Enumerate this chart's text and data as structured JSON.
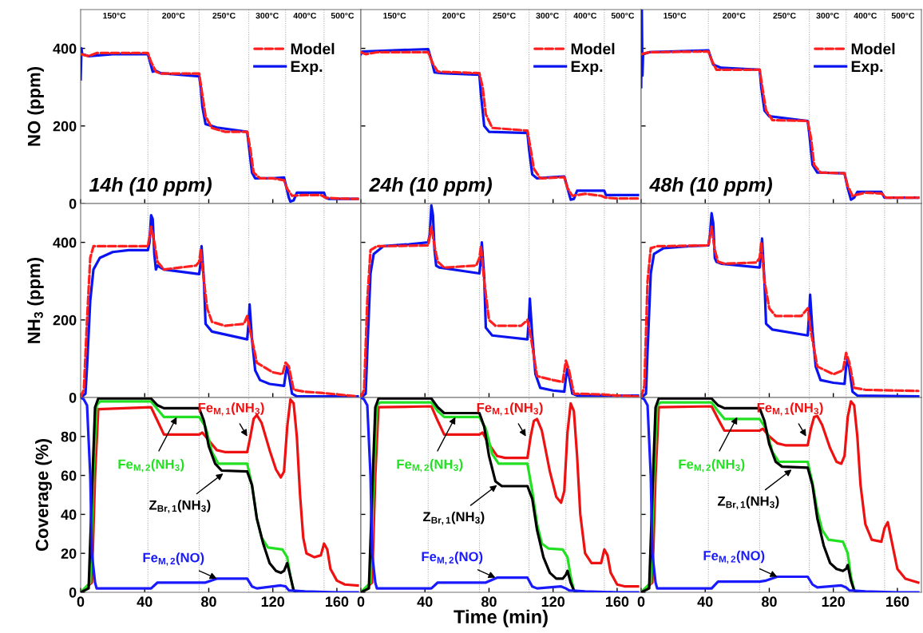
{
  "chart_data": [
    {
      "type": "line",
      "ylabel": "NO (ppm)",
      "xlim": [
        0,
        175
      ],
      "xticks": [
        0,
        40,
        80,
        120,
        160
      ],
      "ylim": [
        0,
        500
      ],
      "yticks": [
        0,
        200,
        400
      ],
      "tick_labels": "y",
      "legend": "top right",
      "ref_lines": [
        {
          "axis": "x",
          "value": 42,
          "color": "#b0b0b0",
          "line_style": "dotted"
        },
        {
          "axis": "x",
          "value": 74,
          "color": "#b0b0b0",
          "line_style": "dotted"
        },
        {
          "axis": "x",
          "value": 105,
          "color": "#b0b0b0",
          "line_style": "dotted"
        },
        {
          "axis": "x",
          "value": 128,
          "color": "#b0b0b0",
          "line_style": "dotted"
        },
        {
          "axis": "x",
          "value": 152,
          "color": "#b0b0b0",
          "line_style": "dotted"
        }
      ],
      "annotations": [
        "150°C",
        "200°C",
        "250°C",
        "300°C",
        "400°C",
        "500°C",
        "14h (10 ppm)"
      ],
      "series": [
        {
          "name": "Model",
          "color": "#ff1f1f",
          "line_style": "dashed",
          "x": [
            0,
            5,
            10,
            42,
            44,
            47,
            50,
            74,
            76,
            78,
            82,
            90,
            104,
            106,
            108,
            112,
            120,
            127,
            129,
            132,
            140,
            150,
            153,
            160,
            173
          ],
          "values": [
            385,
            380,
            388,
            388,
            365,
            340,
            335,
            335,
            280,
            225,
            195,
            185,
            185,
            140,
            80,
            65,
            65,
            60,
            38,
            20,
            22,
            22,
            15,
            13,
            12
          ]
        },
        {
          "name": "Exp.",
          "color": "#0a14f0",
          "line_style": "solid",
          "x": [
            0,
            0.5,
            1,
            5,
            20,
            42,
            43,
            45,
            47,
            50,
            74,
            75,
            76,
            78,
            85,
            104,
            105,
            107,
            109,
            120,
            127,
            128,
            130,
            131,
            133,
            135,
            152,
            153,
            155,
            173
          ],
          "values": [
            320,
            400,
            385,
            380,
            385,
            385,
            370,
            340,
            342,
            336,
            328,
            300,
            250,
            205,
            196,
            185,
            150,
            80,
            65,
            65,
            67,
            50,
            15,
            5,
            8,
            28,
            28,
            15,
            12,
            12
          ]
        }
      ]
    },
    {
      "type": "line",
      "xlim": [
        0,
        175
      ],
      "xticks": [
        0,
        40,
        80,
        120,
        160
      ],
      "ylim": [
        0,
        500
      ],
      "yticks": [
        0,
        200,
        400
      ],
      "tick_labels": false,
      "legend": "top right",
      "ref_lines": [
        {
          "axis": "x",
          "value": 42,
          "color": "#b0b0b0",
          "line_style": "dotted"
        },
        {
          "axis": "x",
          "value": 74,
          "color": "#b0b0b0",
          "line_style": "dotted"
        },
        {
          "axis": "x",
          "value": 105,
          "color": "#b0b0b0",
          "line_style": "dotted"
        },
        {
          "axis": "x",
          "value": 128,
          "color": "#b0b0b0",
          "line_style": "dotted"
        },
        {
          "axis": "x",
          "value": 152,
          "color": "#b0b0b0",
          "line_style": "dotted"
        }
      ],
      "annotations": [
        "150°C",
        "200°C",
        "250°C",
        "300°C",
        "400°C",
        "500°C",
        "24h (10 ppm)"
      ],
      "series": [
        {
          "name": "Model",
          "color": "#ff1f1f",
          "line_style": "dashed",
          "x": [
            0,
            3,
            10,
            42,
            45,
            48,
            74,
            76,
            78,
            82,
            104,
            106,
            108,
            112,
            127,
            129,
            132,
            140,
            150,
            153,
            160,
            173
          ],
          "values": [
            390,
            385,
            390,
            390,
            360,
            340,
            336,
            300,
            230,
            195,
            188,
            140,
            90,
            65,
            68,
            40,
            20,
            25,
            20,
            15,
            13,
            13
          ]
        },
        {
          "name": "Exp.",
          "color": "#0a14f0",
          "line_style": "solid",
          "x": [
            0,
            1,
            20,
            42,
            44,
            46,
            50,
            74,
            75,
            77,
            80,
            104,
            105,
            107,
            110,
            120,
            127,
            129,
            131,
            133,
            135,
            152,
            153,
            173
          ],
          "values": [
            385,
            392,
            395,
            398,
            370,
            338,
            336,
            332,
            280,
            200,
            185,
            182,
            140,
            75,
            65,
            68,
            70,
            40,
            10,
            12,
            33,
            33,
            22,
            22
          ]
        }
      ]
    },
    {
      "type": "line",
      "xlim": [
        0,
        175
      ],
      "xticks": [
        0,
        40,
        80,
        120,
        160
      ],
      "ylim": [
        0,
        500
      ],
      "yticks": [
        0,
        200,
        400
      ],
      "tick_labels": false,
      "legend": "top right",
      "ref_lines": [
        {
          "axis": "x",
          "value": 42,
          "color": "#b0b0b0",
          "line_style": "dotted"
        },
        {
          "axis": "x",
          "value": 74,
          "color": "#b0b0b0",
          "line_style": "dotted"
        },
        {
          "axis": "x",
          "value": 105,
          "color": "#b0b0b0",
          "line_style": "dotted"
        },
        {
          "axis": "x",
          "value": 128,
          "color": "#b0b0b0",
          "line_style": "dotted"
        },
        {
          "axis": "x",
          "value": 152,
          "color": "#b0b0b0",
          "line_style": "dotted"
        }
      ],
      "annotations": [
        "150°C",
        "200°C",
        "250°C",
        "300°C",
        "400°C",
        "500°C",
        "48h (10 ppm)"
      ],
      "series": [
        {
          "name": "Model",
          "color": "#ff1f1f",
          "line_style": "dashed",
          "x": [
            0,
            5,
            42,
            44,
            47,
            74,
            76,
            78,
            82,
            104,
            106,
            108,
            112,
            127,
            129,
            132,
            140,
            150,
            153,
            173
          ],
          "values": [
            385,
            390,
            392,
            370,
            345,
            345,
            290,
            240,
            215,
            213,
            170,
            100,
            80,
            78,
            45,
            20,
            28,
            26,
            15,
            15
          ]
        },
        {
          "name": "Exp.",
          "color": "#0a14f0",
          "line_style": "solid",
          "x": [
            0,
            0.4,
            0.8,
            1.2,
            5,
            42,
            44,
            45,
            50,
            74,
            75,
            77,
            80,
            104,
            105,
            107,
            110,
            127,
            129,
            131,
            133,
            135,
            150,
            152,
            173
          ],
          "values": [
            300,
            500,
            330,
            385,
            390,
            395,
            370,
            358,
            350,
            345,
            300,
            240,
            225,
            213,
            180,
            100,
            80,
            78,
            40,
            10,
            15,
            30,
            30,
            15,
            15
          ]
        }
      ]
    },
    {
      "type": "line",
      "ylabel": "NH$_{3}$ (ppm)",
      "xlim": [
        0,
        175
      ],
      "xticks": [
        0,
        40,
        80,
        120,
        160
      ],
      "ylim": [
        0,
        500
      ],
      "yticks": [
        0,
        200,
        400
      ],
      "tick_labels": "y",
      "ref_lines": [
        {
          "axis": "x",
          "value": 42,
          "color": "#b0b0b0",
          "line_style": "dotted"
        },
        {
          "axis": "x",
          "value": 74,
          "color": "#b0b0b0",
          "line_style": "dotted"
        },
        {
          "axis": "x",
          "value": 105,
          "color": "#b0b0b0",
          "line_style": "dotted"
        },
        {
          "axis": "x",
          "value": 128,
          "color": "#b0b0b0",
          "line_style": "dotted"
        },
        {
          "axis": "x",
          "value": 152,
          "color": "#b0b0b0",
          "line_style": "dotted"
        }
      ],
      "series": [
        {
          "color": "#ff1f1f",
          "line_style": "dashed",
          "x": [
            0,
            2,
            4,
            6,
            8,
            42,
            44,
            46,
            48,
            52,
            72,
            74,
            75,
            77,
            79,
            82,
            90,
            102,
            104,
            106,
            110,
            120,
            126,
            128,
            130,
            133,
            140,
            150,
            173
          ],
          "values": [
            0,
            20,
            200,
            360,
            390,
            390,
            440,
            400,
            350,
            330,
            340,
            350,
            380,
            300,
            230,
            195,
            185,
            190,
            210,
            170,
            90,
            65,
            60,
            90,
            80,
            20,
            15,
            12,
            3
          ]
        },
        {
          "color": "#0a14f0",
          "line_style": "solid",
          "x": [
            0,
            3,
            4,
            6,
            8,
            12,
            20,
            30,
            42,
            43,
            44,
            45,
            46,
            47,
            48,
            52,
            74,
            75,
            75.5,
            77,
            78,
            82,
            104,
            105,
            105.5,
            107,
            109,
            112,
            118,
            127,
            128,
            129,
            130,
            132,
            135,
            173
          ],
          "values": [
            0,
            10,
            80,
            250,
            330,
            360,
            375,
            380,
            380,
            400,
            470,
            460,
            370,
            330,
            340,
            330,
            318,
            350,
            390,
            300,
            190,
            170,
            150,
            200,
            240,
            150,
            70,
            45,
            35,
            30,
            60,
            80,
            60,
            10,
            3,
            3
          ]
        }
      ]
    },
    {
      "type": "line",
      "xlim": [
        0,
        175
      ],
      "xticks": [
        0,
        40,
        80,
        120,
        160
      ],
      "ylim": [
        0,
        500
      ],
      "yticks": [
        0,
        200,
        400
      ],
      "tick_labels": false,
      "ref_lines": [
        {
          "axis": "x",
          "value": 42,
          "color": "#b0b0b0",
          "line_style": "dotted"
        },
        {
          "axis": "x",
          "value": 74,
          "color": "#b0b0b0",
          "line_style": "dotted"
        },
        {
          "axis": "x",
          "value": 105,
          "color": "#b0b0b0",
          "line_style": "dotted"
        },
        {
          "axis": "x",
          "value": 128,
          "color": "#b0b0b0",
          "line_style": "dotted"
        },
        {
          "axis": "x",
          "value": 152,
          "color": "#b0b0b0",
          "line_style": "dotted"
        }
      ],
      "series": [
        {
          "color": "#ff1f1f",
          "line_style": "dashed",
          "x": [
            0,
            2,
            4,
            6,
            10,
            42,
            44,
            46,
            48,
            52,
            72,
            74,
            75,
            77,
            80,
            84,
            100,
            104,
            106,
            110,
            120,
            126,
            128,
            130,
            133,
            150,
            160,
            173
          ],
          "values": [
            0,
            20,
            250,
            380,
            390,
            392,
            440,
            390,
            350,
            335,
            340,
            360,
            390,
            300,
            200,
            185,
            185,
            200,
            160,
            55,
            45,
            40,
            95,
            70,
            10,
            8,
            5,
            3
          ]
        },
        {
          "color": "#0a14f0",
          "line_style": "solid",
          "x": [
            0,
            3,
            4,
            6,
            8,
            14,
            30,
            42,
            43,
            44,
            45,
            46,
            47,
            49,
            74,
            75,
            75.5,
            77,
            78,
            82,
            104,
            105,
            105.5,
            107,
            109,
            112,
            120,
            127,
            128,
            129,
            130,
            132,
            135,
            173
          ],
          "values": [
            0,
            10,
            120,
            320,
            370,
            390,
            395,
            400,
            420,
            495,
            470,
            380,
            340,
            335,
            320,
            360,
            400,
            310,
            180,
            160,
            150,
            210,
            255,
            160,
            60,
            25,
            18,
            15,
            50,
            75,
            55,
            10,
            5,
            5
          ]
        }
      ]
    },
    {
      "type": "line",
      "xlim": [
        0,
        175
      ],
      "xticks": [
        0,
        40,
        80,
        120,
        160
      ],
      "ylim": [
        0,
        500
      ],
      "yticks": [
        0,
        200,
        400
      ],
      "tick_labels": false,
      "ref_lines": [
        {
          "axis": "x",
          "value": 42,
          "color": "#b0b0b0",
          "line_style": "dotted"
        },
        {
          "axis": "x",
          "value": 74,
          "color": "#b0b0b0",
          "line_style": "dotted"
        },
        {
          "axis": "x",
          "value": 105,
          "color": "#b0b0b0",
          "line_style": "dotted"
        },
        {
          "axis": "x",
          "value": 128,
          "color": "#b0b0b0",
          "line_style": "dotted"
        },
        {
          "axis": "x",
          "value": 152,
          "color": "#b0b0b0",
          "line_style": "dotted"
        }
      ],
      "series": [
        {
          "color": "#ff1f1f",
          "line_style": "dashed",
          "x": [
            0,
            2,
            4,
            6,
            10,
            42,
            44,
            46,
            48,
            52,
            72,
            74,
            75,
            77,
            80,
            84,
            100,
            104,
            106,
            110,
            120,
            126,
            128,
            130,
            133,
            140,
            160,
            173
          ],
          "values": [
            0,
            30,
            300,
            385,
            390,
            392,
            440,
            380,
            350,
            345,
            348,
            360,
            400,
            300,
            230,
            210,
            210,
            230,
            170,
            80,
            60,
            70,
            115,
            90,
            25,
            20,
            18,
            17
          ]
        },
        {
          "color": "#0a14f0",
          "line_style": "solid",
          "x": [
            0,
            3,
            4,
            6,
            8,
            14,
            30,
            42,
            43,
            44,
            45,
            46,
            47,
            50,
            74,
            75,
            75.5,
            77,
            78,
            82,
            104,
            105,
            105.5,
            107,
            109,
            112,
            120,
            127,
            128,
            129,
            130,
            132,
            135,
            173
          ],
          "values": [
            0,
            10,
            120,
            320,
            370,
            385,
            390,
            392,
            420,
            475,
            450,
            360,
            350,
            345,
            335,
            380,
            410,
            300,
            190,
            175,
            160,
            220,
            265,
            170,
            80,
            45,
            38,
            35,
            80,
            100,
            75,
            15,
            5,
            3
          ]
        }
      ]
    },
    {
      "type": "line",
      "ylabel": "Coverage (%)",
      "xlim": [
        0,
        175
      ],
      "xticks": [
        0,
        40,
        80,
        120,
        160
      ],
      "ylim": [
        0,
        100
      ],
      "yticks": [
        0,
        20,
        40,
        60,
        80
      ],
      "ref_lines": [
        {
          "axis": "x",
          "value": 42,
          "color": "#b0b0b0",
          "line_style": "dotted"
        },
        {
          "axis": "x",
          "value": 74,
          "color": "#b0b0b0",
          "line_style": "dotted"
        },
        {
          "axis": "x",
          "value": 105,
          "color": "#b0b0b0",
          "line_style": "dotted"
        },
        {
          "axis": "x",
          "value": 128,
          "color": "#b0b0b0",
          "line_style": "dotted"
        },
        {
          "axis": "x",
          "value": 152,
          "color": "#b0b0b0",
          "line_style": "dotted"
        }
      ],
      "annotations": [
        {
          "text": "Fe$_{M,1}$(NH$_{3}$)",
          "x": 104,
          "y": 80
        },
        {
          "text": "Fe$_{M,2}$(NH$_{3}$)",
          "x": 60,
          "y": 90
        },
        {
          "text": "Z$_{Br,1}$(NH$_{3}$)",
          "x": 89,
          "y": 61
        },
        {
          "text": "Fe$_{M,2}$(NO)",
          "x": 85,
          "y": 7
        }
      ],
      "series": [
        {
          "color": "#ee1111",
          "line_style": "solid",
          "x": [
            0,
            7,
            9,
            11,
            44,
            48,
            52,
            74,
            76,
            80,
            85,
            90,
            104,
            106,
            108,
            110,
            113,
            118,
            122,
            125,
            127,
            129,
            131,
            133,
            135,
            137,
            139,
            141,
            146,
            150,
            152,
            154,
            156,
            160,
            165,
            173
          ],
          "values": [
            0,
            5,
            60,
            94,
            95,
            88,
            81,
            81,
            82,
            78,
            73,
            72,
            72,
            80,
            89,
            91,
            87,
            73,
            63,
            59,
            62,
            85,
            99,
            97,
            80,
            50,
            28,
            20,
            18,
            19,
            25,
            22,
            12,
            6,
            4,
            3.5
          ]
        },
        {
          "color": "#22e022",
          "line_style": "solid",
          "x": [
            0,
            6,
            8,
            10,
            12,
            44,
            48,
            52,
            74,
            78,
            82,
            86,
            104,
            107,
            110,
            113,
            117,
            126,
            129,
            131,
            133,
            135
          ],
          "values": [
            0,
            5,
            60,
            96,
            98,
            98,
            94,
            90,
            90,
            85,
            72,
            66,
            66,
            55,
            38,
            28,
            23,
            22,
            18,
            8,
            1,
            0
          ]
        },
        {
          "color": "#000000",
          "line_style": "solid",
          "x": [
            0,
            5,
            7,
            9,
            11,
            44,
            48,
            52,
            74,
            77,
            80,
            84,
            88,
            104,
            107,
            110,
            114,
            118,
            122,
            125,
            127,
            129,
            131,
            133,
            135
          ],
          "values": [
            0,
            2,
            50,
            95,
            99.5,
            99.5,
            96,
            94.5,
            94.5,
            88,
            75,
            66,
            62.5,
            62,
            55,
            38,
            25,
            15,
            11,
            10,
            11,
            15,
            8,
            1,
            0
          ]
        },
        {
          "color": "#1a1aff",
          "line_style": "solid",
          "x": [
            0,
            2,
            4,
            6,
            7,
            9,
            10,
            44,
            48,
            74,
            78,
            85,
            104,
            107,
            110,
            125,
            128,
            130,
            140,
            160,
            173
          ],
          "values": [
            100,
            99,
            96,
            60,
            20,
            5,
            2,
            2,
            5,
            5,
            5,
            7,
            7,
            3,
            2,
            3.5,
            3,
            1,
            0.5,
            0,
            0
          ]
        }
      ]
    },
    {
      "type": "line",
      "xlabel": "Time (min)",
      "xlim": [
        0,
        175
      ],
      "xticks": [
        0,
        40,
        80,
        120,
        160
      ],
      "ylim": [
        0,
        100
      ],
      "yticks": [
        0,
        20,
        40,
        60,
        80
      ],
      "tick_labels": "x",
      "ref_lines": [
        {
          "axis": "x",
          "value": 42,
          "color": "#b0b0b0",
          "line_style": "dotted"
        },
        {
          "axis": "x",
          "value": 74,
          "color": "#b0b0b0",
          "line_style": "dotted"
        },
        {
          "axis": "x",
          "value": 105,
          "color": "#b0b0b0",
          "line_style": "dotted"
        },
        {
          "axis": "x",
          "value": 128,
          "color": "#b0b0b0",
          "line_style": "dotted"
        },
        {
          "axis": "x",
          "value": 152,
          "color": "#b0b0b0",
          "line_style": "dotted"
        }
      ],
      "annotations": [
        {
          "text": "Fe$_{M,1}$(NH$_{3}$)",
          "x": 103,
          "y": 80
        },
        {
          "text": "Fe$_{M,2}$(NH$_{3}$)",
          "x": 59,
          "y": 90
        },
        {
          "text": "Z$_{Br,1}$(NH$_{3}$)",
          "x": 85,
          "y": 55
        },
        {
          "text": "Fe$_{M,2}$(NO)",
          "x": 84,
          "y": 7.5
        }
      ],
      "series": [
        {
          "color": "#ee1111",
          "line_style": "solid",
          "x": [
            0,
            7,
            9,
            11,
            44,
            48,
            52,
            74,
            76,
            80,
            85,
            90,
            104,
            106,
            108,
            110,
            113,
            118,
            122,
            125,
            127,
            129,
            131,
            133,
            135,
            137,
            140,
            144,
            150,
            152,
            154,
            156,
            160,
            165,
            173
          ],
          "values": [
            0,
            5,
            60,
            95,
            95.5,
            88,
            81,
            81,
            82,
            76,
            70,
            69,
            69,
            80,
            88,
            89,
            83,
            62,
            49,
            46,
            52,
            82,
            97,
            93,
            70,
            40,
            20,
            15,
            15,
            22,
            19,
            10,
            4,
            3,
            3
          ]
        },
        {
          "color": "#22e022",
          "line_style": "solid",
          "x": [
            0,
            6,
            8,
            10,
            12,
            44,
            48,
            52,
            74,
            78,
            82,
            86,
            104,
            107,
            110,
            113,
            117,
            126,
            129,
            131,
            133,
            135
          ],
          "values": [
            0,
            5,
            60,
            96,
            97.5,
            97.5,
            93,
            90,
            90,
            84,
            71,
            66,
            66,
            52,
            35,
            25,
            22.5,
            22,
            18,
            8,
            1,
            0
          ]
        },
        {
          "color": "#000000",
          "line_style": "solid",
          "x": [
            0,
            5,
            7,
            9,
            11,
            44,
            48,
            52,
            74,
            77,
            80,
            84,
            88,
            104,
            107,
            110,
            114,
            118,
            122,
            126,
            128,
            129,
            131,
            133,
            135
          ],
          "values": [
            0,
            2,
            50,
            95,
            99.5,
            99.5,
            95,
            92,
            92,
            85,
            70,
            57,
            54.5,
            54.5,
            48,
            32,
            18,
            10,
            7,
            7,
            9,
            11,
            5,
            1,
            0
          ]
        },
        {
          "color": "#1a1aff",
          "line_style": "solid",
          "x": [
            0,
            2,
            4,
            6,
            7,
            9,
            10,
            44,
            48,
            74,
            78,
            85,
            104,
            107,
            110,
            125,
            128,
            130,
            140,
            160,
            173
          ],
          "values": [
            100,
            99,
            96,
            60,
            20,
            5,
            2,
            2,
            5,
            5,
            5,
            7.5,
            7.5,
            3,
            2,
            3,
            2,
            1,
            0.5,
            0,
            0
          ]
        }
      ]
    },
    {
      "type": "line",
      "xlim": [
        0,
        175
      ],
      "xticks": [
        0,
        40,
        80,
        120,
        160
      ],
      "ylim": [
        0,
        100
      ],
      "yticks": [
        0,
        20,
        40,
        60,
        80
      ],
      "tick_labels": "x",
      "ref_lines": [
        {
          "axis": "x",
          "value": 42,
          "color": "#b0b0b0",
          "line_style": "dotted"
        },
        {
          "axis": "x",
          "value": 74,
          "color": "#b0b0b0",
          "line_style": "dotted"
        },
        {
          "axis": "x",
          "value": 105,
          "color": "#b0b0b0",
          "line_style": "dotted"
        },
        {
          "axis": "x",
          "value": 128,
          "color": "#b0b0b0",
          "line_style": "dotted"
        },
        {
          "axis": "x",
          "value": 152,
          "color": "#b0b0b0",
          "line_style": "dotted"
        }
      ],
      "annotations": [
        {
          "text": "Fe$_{M,1}$(NH$_{3}$)",
          "x": 103,
          "y": 80
        },
        {
          "text": "Fe$_{M,2}$(NH$_{3}$)",
          "x": 60,
          "y": 90
        },
        {
          "text": "Z$_{Br,1}$(NH$_{3}$)",
          "x": 94,
          "y": 63
        },
        {
          "text": "Fe$_{M,2}$(NO)",
          "x": 85,
          "y": 8
        }
      ],
      "series": [
        {
          "color": "#ee1111",
          "line_style": "solid",
          "x": [
            0,
            7,
            9,
            11,
            44,
            48,
            52,
            74,
            76,
            80,
            85,
            90,
            104,
            106,
            108,
            110,
            113,
            118,
            122,
            125,
            127,
            129,
            131,
            133,
            135,
            137,
            140,
            144,
            150,
            152,
            154,
            156,
            160,
            165,
            173
          ],
          "values": [
            0,
            5,
            60,
            95,
            95.5,
            89,
            83,
            83,
            84,
            80,
            76.5,
            75.5,
            75.5,
            84,
            90,
            90.5,
            86,
            74,
            67,
            66,
            70,
            90,
            98,
            96,
            80,
            55,
            35,
            27,
            26,
            33,
            36,
            28,
            12,
            7,
            5
          ]
        },
        {
          "color": "#22e022",
          "line_style": "solid",
          "x": [
            0,
            6,
            8,
            10,
            12,
            44,
            48,
            52,
            74,
            78,
            82,
            86,
            104,
            107,
            110,
            113,
            117,
            126,
            129,
            131,
            133,
            135
          ],
          "values": [
            0,
            5,
            60,
            96,
            97.5,
            97.5,
            93,
            89,
            89,
            84,
            72,
            67,
            67,
            56,
            42,
            32,
            27,
            26,
            20,
            8,
            1,
            0
          ]
        },
        {
          "color": "#000000",
          "line_style": "solid",
          "x": [
            0,
            5,
            7,
            9,
            11,
            44,
            48,
            52,
            74,
            77,
            80,
            84,
            88,
            104,
            107,
            110,
            114,
            118,
            122,
            126,
            128,
            129,
            131,
            133,
            135
          ],
          "values": [
            0,
            2,
            50,
            95,
            99.5,
            99.5,
            96,
            94.5,
            94.5,
            88,
            76,
            67,
            64.5,
            64,
            55,
            38,
            24,
            15,
            12,
            11,
            12,
            14,
            6,
            1,
            0
          ]
        },
        {
          "color": "#1a1aff",
          "line_style": "solid",
          "x": [
            0,
            2,
            4,
            6,
            7,
            9,
            10,
            44,
            48,
            74,
            78,
            85,
            104,
            107,
            110,
            125,
            128,
            130,
            140,
            160,
            173
          ],
          "values": [
            100,
            99,
            96,
            60,
            20,
            5,
            2,
            2,
            5.5,
            5.5,
            6,
            8,
            8,
            4,
            2.5,
            3.5,
            2.5,
            1,
            0.5,
            0,
            0
          ]
        }
      ]
    }
  ]
}
